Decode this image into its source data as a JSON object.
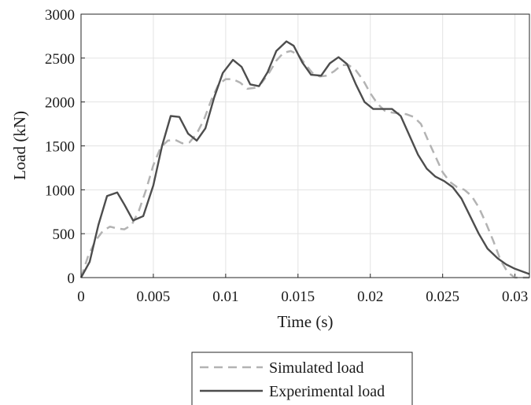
{
  "chart_data": {
    "type": "line",
    "xlabel": "Time (s)",
    "ylabel": "Load (kN)",
    "xlim": [
      0,
      0.031
    ],
    "ylim": [
      0,
      3000
    ],
    "xticks": [
      "0",
      "0.005",
      "0.01",
      "0.015",
      "0.02",
      "0.025",
      "0.03"
    ],
    "xtick_values": [
      0,
      0.005,
      0.01,
      0.015,
      0.02,
      0.025,
      0.03
    ],
    "yticks": [
      "0",
      "500",
      "1000",
      "1500",
      "2000",
      "2500",
      "3000"
    ],
    "ytick_values": [
      0,
      500,
      1000,
      1500,
      2000,
      2500,
      3000
    ],
    "grid": true,
    "legend_position": "bottom",
    "series": [
      {
        "name": "Simulated load",
        "color": "#b3b3b3",
        "style": "dashed",
        "x": [
          0,
          0.0005,
          0.001,
          0.0015,
          0.002,
          0.0025,
          0.003,
          0.0035,
          0.004,
          0.0045,
          0.005,
          0.0055,
          0.006,
          0.0065,
          0.007,
          0.0075,
          0.008,
          0.0085,
          0.009,
          0.0095,
          0.01,
          0.0105,
          0.011,
          0.0115,
          0.012,
          0.0125,
          0.013,
          0.0135,
          0.014,
          0.0145,
          0.015,
          0.0155,
          0.016,
          0.0165,
          0.017,
          0.0175,
          0.018,
          0.0185,
          0.019,
          0.0195,
          0.02,
          0.0205,
          0.021,
          0.0215,
          0.022,
          0.0225,
          0.023,
          0.0235,
          0.024,
          0.0245,
          0.025,
          0.0255,
          0.026,
          0.0265,
          0.027,
          0.0275,
          0.028,
          0.0285,
          0.029,
          0.0295,
          0.03,
          0.031
        ],
        "y": [
          0,
          250,
          420,
          530,
          580,
          560,
          550,
          600,
          760,
          1000,
          1280,
          1480,
          1560,
          1570,
          1530,
          1540,
          1640,
          1800,
          2020,
          2200,
          2260,
          2260,
          2220,
          2150,
          2160,
          2220,
          2330,
          2470,
          2560,
          2580,
          2540,
          2430,
          2330,
          2290,
          2300,
          2350,
          2420,
          2420,
          2360,
          2250,
          2100,
          1980,
          1900,
          1880,
          1870,
          1860,
          1830,
          1750,
          1560,
          1380,
          1200,
          1090,
          1030,
          1000,
          930,
          800,
          620,
          420,
          200,
          60,
          0,
          0
        ]
      },
      {
        "name": "Experimental load",
        "color": "#4d4d4d",
        "style": "solid",
        "x": [
          0,
          0.0006,
          0.0012,
          0.0018,
          0.0025,
          0.003,
          0.0036,
          0.0043,
          0.005,
          0.0056,
          0.0062,
          0.0068,
          0.0074,
          0.008,
          0.0086,
          0.0092,
          0.0098,
          0.0105,
          0.0111,
          0.0117,
          0.0123,
          0.0129,
          0.0135,
          0.0142,
          0.0147,
          0.0153,
          0.0159,
          0.0166,
          0.0172,
          0.0178,
          0.0184,
          0.019,
          0.0196,
          0.0202,
          0.0208,
          0.0215,
          0.0221,
          0.0227,
          0.0233,
          0.0239,
          0.0245,
          0.0251,
          0.0257,
          0.0263,
          0.0269,
          0.0275,
          0.0281,
          0.0288,
          0.0294,
          0.03,
          0.031
        ],
        "y": [
          0,
          180,
          600,
          930,
          970,
          830,
          650,
          700,
          1050,
          1500,
          1840,
          1830,
          1640,
          1560,
          1700,
          2050,
          2330,
          2480,
          2400,
          2200,
          2180,
          2340,
          2580,
          2690,
          2640,
          2450,
          2310,
          2300,
          2440,
          2510,
          2430,
          2200,
          2000,
          1920,
          1920,
          1920,
          1840,
          1620,
          1400,
          1240,
          1150,
          1100,
          1030,
          900,
          700,
          500,
          330,
          220,
          150,
          100,
          40
        ]
      }
    ]
  }
}
